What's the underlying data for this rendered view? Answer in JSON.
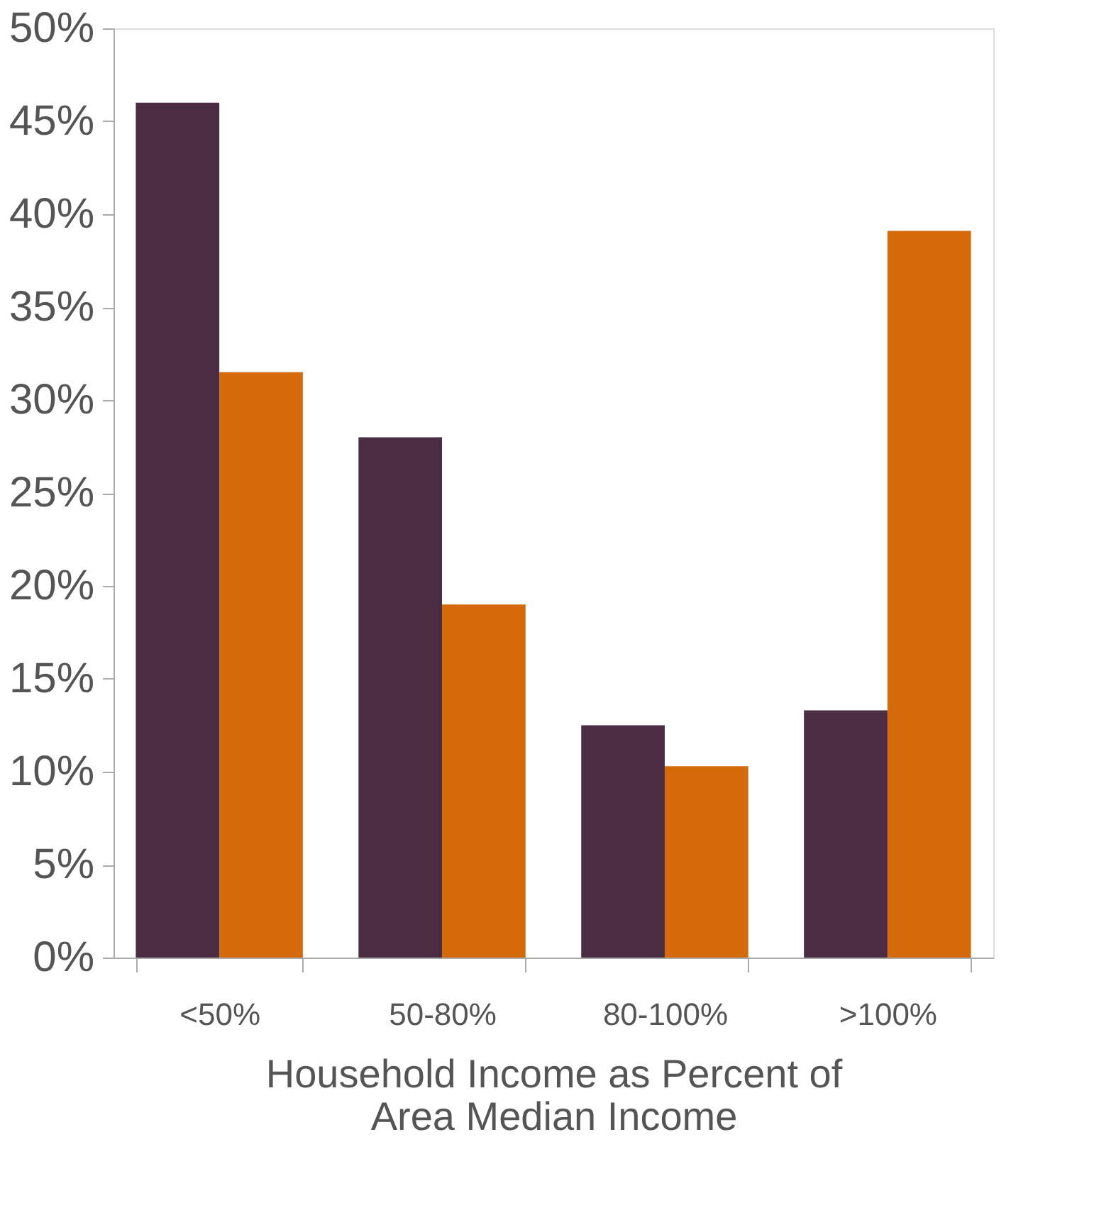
{
  "chart_data": {
    "type": "bar",
    "xlabel": "Household Income as Percent of Area Median Income",
    "categories": [
      "<50%",
      "50-80%",
      "80-100%",
      ">100%"
    ],
    "series": [
      {
        "color": "#4b2d43",
        "values": [
          46,
          28,
          12.5,
          13.3
        ]
      },
      {
        "color": "#d46a0a",
        "values": [
          31.5,
          19,
          10.3,
          39.1
        ]
      }
    ],
    "ylim": [
      0,
      50
    ],
    "yticks": [
      {
        "value": 0,
        "label": "0%"
      },
      {
        "value": 5,
        "label": "5%"
      },
      {
        "value": 10,
        "label": "10%"
      },
      {
        "value": 15,
        "label": "15%"
      },
      {
        "value": 20,
        "label": "20%"
      },
      {
        "value": 25,
        "label": "25%"
      },
      {
        "value": 30,
        "label": "30%"
      },
      {
        "value": 35,
        "label": "35%"
      },
      {
        "value": 40,
        "label": "40%"
      },
      {
        "value": 45,
        "label": "45%"
      },
      {
        "value": 50,
        "label": "50%"
      }
    ],
    "grid": false,
    "legend": false
  }
}
